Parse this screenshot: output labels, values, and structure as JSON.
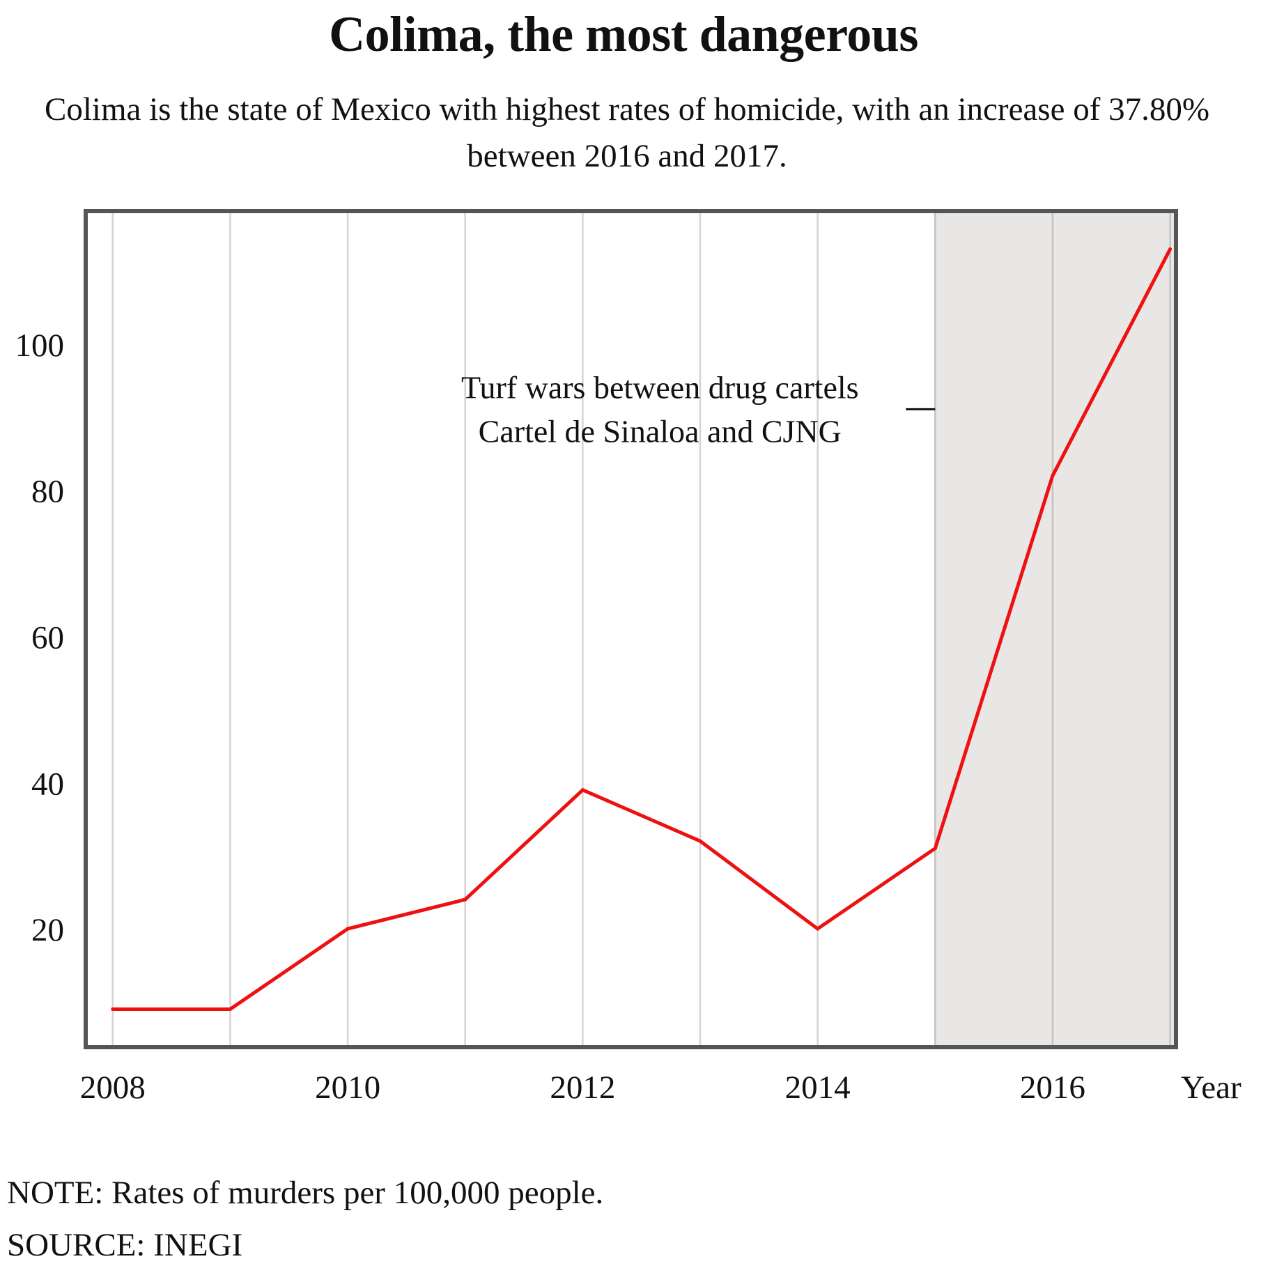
{
  "chart_data": {
    "type": "line",
    "title": "Colima, the most dangerous",
    "subtitle": "Colima is the state of Mexico with highest rates of homicide, with an increase of 37.80%  between 2016 and 2017.",
    "xlabel": "Year",
    "ylabel": "",
    "x": [
      2008,
      2009,
      2010,
      2011,
      2012,
      2013,
      2014,
      2015,
      2016,
      2017
    ],
    "series": [
      {
        "values": [
          9,
          9,
          20,
          24,
          39,
          32,
          20,
          31,
          82,
          113
        ],
        "color": "#ee1111"
      }
    ],
    "xticks": [
      2008,
      2010,
      2012,
      2014,
      2016
    ],
    "yticks": [
      20,
      40,
      60,
      80,
      100
    ],
    "xlim": [
      2007.77,
      2017.05
    ],
    "ylim": [
      3.8,
      118.2
    ],
    "grid": "vertical",
    "highlight": {
      "from": 2015,
      "to": 2017.05,
      "color": "#e9e7e6"
    },
    "annotation": {
      "lines": [
        "Turf wars between drug cartels",
        "Cartel de Sinaloa and CJNG"
      ],
      "x": 2015,
      "y": 91
    },
    "note": "NOTE: Rates of murders per 100,000 people.",
    "source": "SOURCE: INEGI"
  }
}
